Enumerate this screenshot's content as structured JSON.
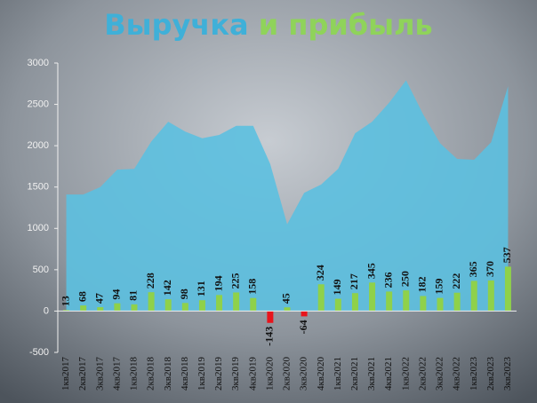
{
  "chart_data": {
    "type": "bar",
    "title": [
      "Выручка",
      "и прибыль"
    ],
    "title_colors": [
      "#3fb0d8",
      "#8fd35a"
    ],
    "categories": [
      "1кв2017",
      "2кв2017",
      "3кв2017",
      "4кв2017",
      "1кв2018",
      "2кв2018",
      "3кв2018",
      "4кв2018",
      "1кв2019",
      "2кв2019",
      "3кв2019",
      "4кв2019",
      "1кв2020",
      "2кв2020",
      "3кв2020",
      "4кв2020",
      "1кв2021",
      "2кв2021",
      "3кв2021",
      "4кв2021",
      "1кв2022",
      "2кв2022",
      "3кв2022",
      "4кв2022",
      "1кв2023",
      "2кв2023",
      "3кв2023"
    ],
    "series": [
      {
        "type": "area",
        "color": "#5cc0e0",
        "values": [
          1410,
          1410,
          1500,
          1710,
          1720,
          2050,
          2290,
          2170,
          2090,
          2130,
          2240,
          2240,
          1780,
          1050,
          1430,
          1530,
          1720,
          2150,
          2290,
          2520,
          2790,
          2380,
          2030,
          1840,
          1830,
          2040,
          2720
        ]
      },
      {
        "type": "bar",
        "color": "#8fd14a",
        "negative_color": "#e8141c",
        "values": [
          13,
          68,
          47,
          94,
          81,
          228,
          142,
          98,
          131,
          194,
          225,
          158,
          -143,
          45,
          -64,
          324,
          149,
          217,
          345,
          236,
          250,
          182,
          159,
          222,
          365,
          370,
          537
        ]
      }
    ],
    "ylim": [
      -500,
      3000
    ],
    "yticks": [
      -500,
      0,
      500,
      1000,
      1500,
      2000,
      2500,
      3000
    ]
  }
}
